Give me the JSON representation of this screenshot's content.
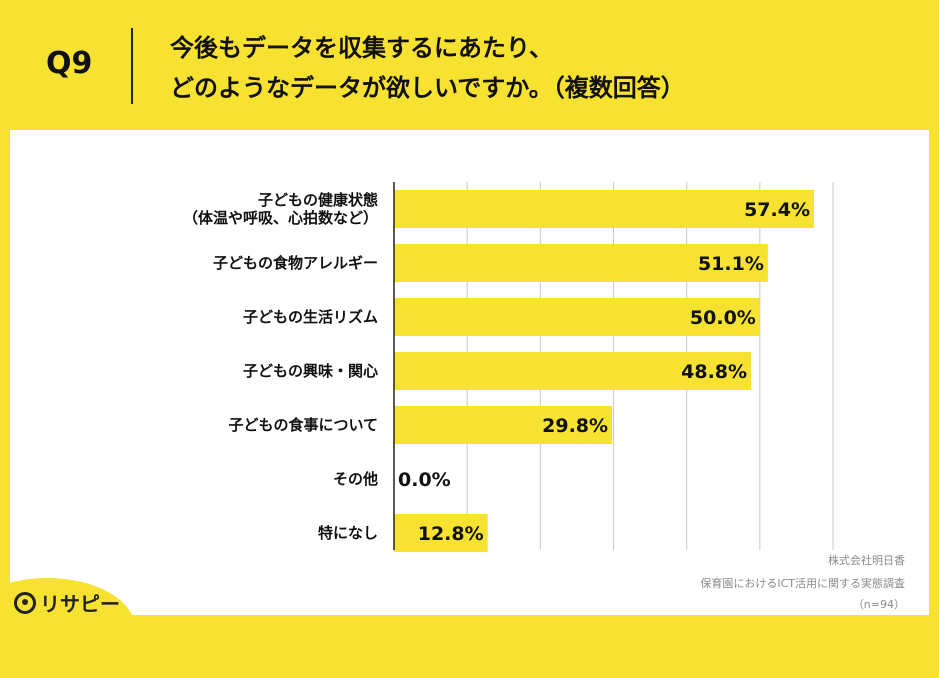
{
  "header": {
    "question": "Q9",
    "title_line1": "今後もデータを収集するにあたり、",
    "title_line2": "どのようなデータが欲しいですか。（複数回答）"
  },
  "chart_data": {
    "type": "bar",
    "orientation": "horizontal",
    "categories": [
      [
        "子どもの健康状態",
        "（体温や呼吸、心拍数など）"
      ],
      [
        "子どもの食物アレルギー"
      ],
      [
        "子どもの生活リズム"
      ],
      [
        "子どもの興味・関心"
      ],
      [
        "子どもの食事について"
      ],
      [
        "その他"
      ],
      [
        "特になし"
      ]
    ],
    "values": [
      57.4,
      51.1,
      50.0,
      48.8,
      29.8,
      0.0,
      12.8
    ],
    "value_labels": [
      "57.4%",
      "51.1%",
      "50.0%",
      "48.8%",
      "29.8%",
      "0.0%",
      "12.8%"
    ],
    "xlim": [
      0,
      60
    ],
    "grid": true,
    "bar_color": "#f7e131"
  },
  "source": {
    "company": "株式会社明日香",
    "survey": "保育園におけるICT活用に関する実態調査",
    "n": "（n=94）"
  },
  "logo": {
    "text": "リサピー",
    "icon": "risapi-logo-icon"
  }
}
